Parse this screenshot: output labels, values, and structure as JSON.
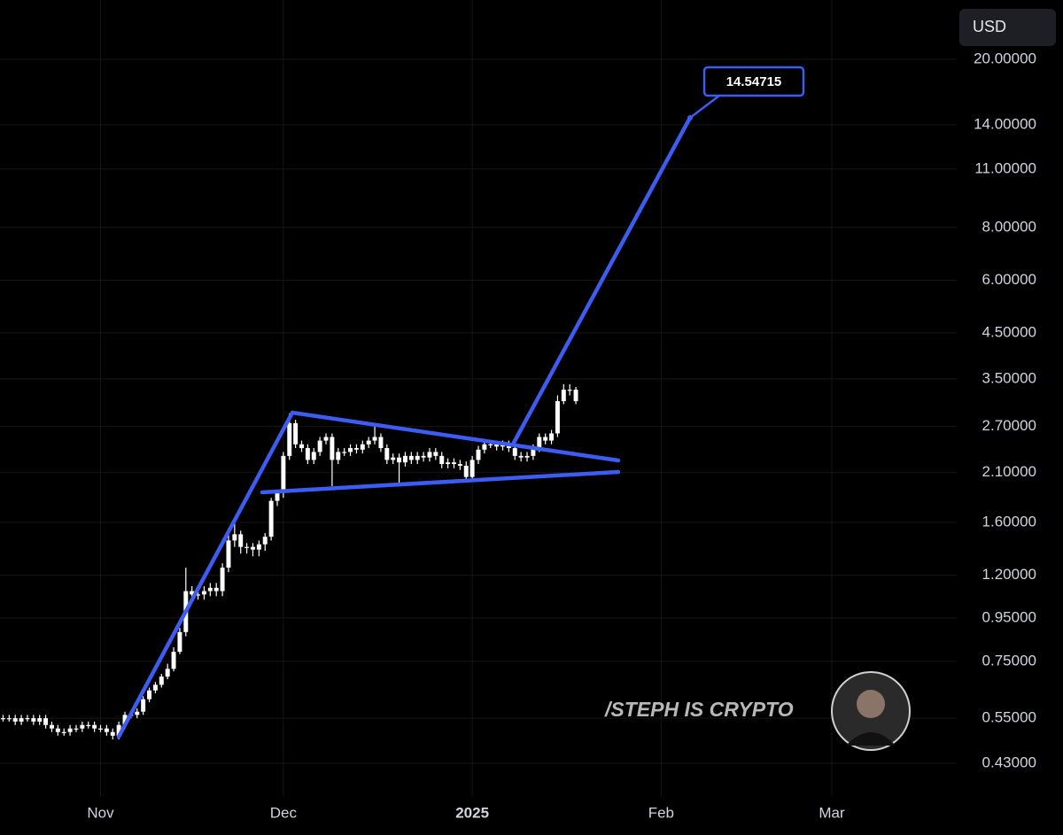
{
  "chart_data": {
    "type": "candlestick",
    "color": "#ffffff",
    "log_scale": true,
    "grid": true,
    "currency": "USD",
    "watermark": "/STEPH IS CRYPTO",
    "target": 14.54715,
    "annotation_color": "#3d5cf2",
    "ylim": [
      0.358,
      27.65
    ],
    "yticks": [
      {
        "value": 0.43,
        "label": "0.43000"
      },
      {
        "value": 0.55,
        "label": "0.55000"
      },
      {
        "value": 0.75,
        "label": "0.75000"
      },
      {
        "value": 0.95,
        "label": "0.95000"
      },
      {
        "value": 1.2,
        "label": "1.20000"
      },
      {
        "value": 1.6,
        "label": "1.60000"
      },
      {
        "value": 2.1,
        "label": "2.10000"
      },
      {
        "value": 2.7,
        "label": "2.70000"
      },
      {
        "value": 3.5,
        "label": "3.50000"
      },
      {
        "value": 4.5,
        "label": "4.50000"
      },
      {
        "value": 6,
        "label": "6.00000"
      },
      {
        "value": 8,
        "label": "8.00000"
      },
      {
        "value": 11,
        "label": "11.00000"
      },
      {
        "value": 14,
        "label": "14.00000"
      },
      {
        "value": 20,
        "label": "20.00000"
      }
    ],
    "categories": [
      null,
      null,
      null,
      null,
      null,
      null,
      null,
      null,
      null,
      null,
      null,
      null,
      null,
      null,
      null,
      null,
      "Nov",
      null,
      null,
      null,
      null,
      null,
      null,
      null,
      null,
      null,
      null,
      null,
      null,
      null,
      null,
      null,
      null,
      null,
      null,
      null,
      null,
      null,
      null,
      null,
      null,
      null,
      null,
      null,
      null,
      null,
      "Dec",
      null,
      null,
      null,
      null,
      null,
      null,
      null,
      null,
      null,
      null,
      null,
      null,
      null,
      null,
      null,
      null,
      null,
      null,
      null,
      null,
      null,
      null,
      null,
      null,
      null,
      null,
      null,
      null,
      null,
      null,
      "2025",
      null,
      null,
      null,
      null,
      null,
      null,
      null,
      null,
      null,
      null,
      null,
      null,
      null,
      null,
      null,
      null,
      null,
      null,
      null,
      null,
      null,
      null,
      null,
      null,
      null,
      null,
      null,
      null,
      null,
      null,
      "Feb",
      null,
      null,
      null,
      null,
      null,
      null,
      null,
      null,
      null,
      null,
      null,
      null,
      null,
      null,
      null,
      null,
      null,
      null,
      null,
      null,
      null,
      null,
      null,
      null,
      null,
      null,
      null,
      "Mar",
      null,
      null,
      null,
      null,
      null,
      null,
      null,
      null,
      null,
      null,
      null,
      null,
      null,
      null,
      null,
      null,
      null,
      null,
      null,
      null
    ],
    "open": [
      0.55,
      0.55,
      0.55,
      0.54,
      0.55,
      0.55,
      0.54,
      0.55,
      0.53,
      0.52,
      0.51,
      0.51,
      0.52,
      0.52,
      0.53,
      0.53,
      0.52,
      0.52,
      0.51,
      0.5,
      0.53,
      0.56,
      0.56,
      0.57,
      0.61,
      0.64,
      0.66,
      0.69,
      0.72,
      0.79,
      0.88,
      1.1,
      1.08,
      1.08,
      1.1,
      1.12,
      1.1,
      1.25,
      1.45,
      1.5,
      1.4,
      1.4,
      1.38,
      1.42,
      1.48,
      1.8,
      1.88,
      2.3,
      2.75,
      2.45,
      2.4,
      2.25,
      2.35,
      2.5,
      2.55,
      2.25,
      2.35,
      2.35,
      2.4,
      2.38,
      2.45,
      2.5,
      2.55,
      2.4,
      2.25,
      2.28,
      2.22,
      2.3,
      2.25,
      2.3,
      2.28,
      2.35,
      2.3,
      2.2,
      2.22,
      2.2,
      2.18,
      2.05,
      2.25,
      2.38,
      2.45,
      2.45,
      2.42,
      2.45,
      2.4,
      2.3,
      2.28,
      2.3,
      2.4,
      2.55,
      2.5,
      2.6,
      3.1,
      3.3,
      3.3,
      null,
      null,
      null,
      null,
      null,
      null,
      null,
      null,
      null,
      null,
      null,
      null,
      null,
      null,
      null,
      null,
      null,
      null,
      null,
      null,
      null,
      null,
      null,
      null,
      null,
      null,
      null,
      null,
      null,
      null,
      null,
      null,
      null,
      null,
      null,
      null,
      null,
      null,
      null,
      null,
      null,
      null,
      null,
      null,
      null,
      null,
      null,
      null,
      null,
      null,
      null,
      null,
      null,
      null,
      null,
      null,
      null,
      null,
      null,
      null,
      null,
      null
    ],
    "high": [
      0.56,
      0.56,
      0.56,
      0.56,
      0.56,
      0.56,
      0.56,
      0.56,
      0.54,
      0.53,
      0.52,
      0.53,
      0.53,
      0.54,
      0.54,
      0.54,
      0.53,
      0.53,
      0.52,
      0.54,
      0.57,
      0.57,
      0.58,
      0.62,
      0.65,
      0.67,
      0.7,
      0.74,
      0.81,
      0.9,
      1.25,
      1.13,
      1.11,
      1.13,
      1.15,
      1.15,
      1.28,
      1.55,
      1.6,
      1.53,
      1.43,
      1.43,
      1.45,
      1.51,
      1.83,
      1.91,
      2.35,
      2.9,
      2.8,
      2.5,
      2.45,
      2.4,
      2.55,
      2.6,
      2.6,
      2.4,
      2.4,
      2.45,
      2.45,
      2.5,
      2.55,
      2.7,
      2.6,
      2.45,
      2.33,
      2.33,
      2.35,
      2.35,
      2.35,
      2.35,
      2.4,
      2.4,
      2.35,
      2.27,
      2.27,
      2.25,
      2.23,
      2.3,
      2.43,
      2.5,
      2.5,
      2.5,
      2.5,
      2.5,
      2.45,
      2.35,
      2.35,
      2.45,
      2.6,
      2.6,
      2.65,
      3.2,
      3.4,
      3.4,
      3.35,
      null,
      null,
      null,
      null,
      null,
      null,
      null,
      null,
      null,
      null,
      null,
      null,
      null,
      null,
      null,
      null,
      null,
      null,
      null,
      null,
      null,
      null,
      null,
      null,
      null,
      null,
      null,
      null,
      null,
      null,
      null,
      null,
      null,
      null,
      null,
      null,
      null,
      null,
      null,
      null,
      null,
      null,
      null,
      null,
      null,
      null,
      null,
      null,
      null,
      null,
      null,
      null,
      null,
      null,
      null,
      null,
      null,
      null,
      null,
      null,
      null,
      null
    ],
    "low": [
      0.54,
      0.54,
      0.53,
      0.53,
      0.54,
      0.53,
      0.53,
      0.52,
      0.51,
      0.5,
      0.5,
      0.5,
      0.51,
      0.51,
      0.52,
      0.51,
      0.51,
      0.5,
      0.49,
      0.49,
      0.52,
      0.55,
      0.55,
      0.56,
      0.6,
      0.63,
      0.65,
      0.68,
      0.71,
      0.78,
      0.86,
      1.05,
      1.05,
      1.05,
      1.07,
      1.07,
      1.07,
      1.22,
      1.4,
      1.35,
      1.35,
      1.33,
      1.33,
      1.37,
      1.45,
      1.75,
      1.83,
      2.25,
      2.4,
      2.35,
      2.2,
      2.2,
      2.3,
      2.45,
      1.95,
      2.2,
      2.3,
      2.3,
      2.33,
      2.33,
      2.4,
      2.45,
      2.35,
      2.2,
      2.2,
      1.97,
      2.17,
      2.2,
      2.2,
      2.23,
      2.23,
      2.25,
      2.15,
      2.15,
      2.15,
      2.13,
      2.0,
      2.0,
      2.2,
      2.33,
      2.4,
      2.37,
      2.37,
      2.35,
      2.25,
      2.23,
      2.23,
      2.25,
      2.35,
      2.45,
      2.45,
      2.55,
      3.05,
      3.2,
      3.05,
      null,
      null,
      null,
      null,
      null,
      null,
      null,
      null,
      null,
      null,
      null,
      null,
      null,
      null,
      null,
      null,
      null,
      null,
      null,
      null,
      null,
      null,
      null,
      null,
      null,
      null,
      null,
      null,
      null,
      null,
      null,
      null,
      null,
      null,
      null,
      null,
      null,
      null,
      null,
      null,
      null,
      null,
      null,
      null,
      null,
      null,
      null,
      null,
      null,
      null,
      null,
      null,
      null,
      null,
      null,
      null,
      null,
      null,
      null,
      null,
      null,
      null
    ],
    "close": [
      0.55,
      0.55,
      0.54,
      0.55,
      0.55,
      0.54,
      0.55,
      0.53,
      0.52,
      0.51,
      0.51,
      0.52,
      0.52,
      0.53,
      0.53,
      0.52,
      0.52,
      0.51,
      0.5,
      0.53,
      0.56,
      0.56,
      0.57,
      0.61,
      0.64,
      0.66,
      0.69,
      0.72,
      0.79,
      0.88,
      1.1,
      1.08,
      1.08,
      1.1,
      1.12,
      1.1,
      1.25,
      1.45,
      1.5,
      1.4,
      1.4,
      1.38,
      1.42,
      1.48,
      1.8,
      1.88,
      2.3,
      2.75,
      2.45,
      2.4,
      2.25,
      2.35,
      2.5,
      2.55,
      2.25,
      2.35,
      2.35,
      2.4,
      2.38,
      2.45,
      2.5,
      2.55,
      2.4,
      2.25,
      2.28,
      2.22,
      2.3,
      2.25,
      2.3,
      2.28,
      2.35,
      2.3,
      2.2,
      2.22,
      2.2,
      2.18,
      2.05,
      2.25,
      2.38,
      2.45,
      2.45,
      2.42,
      2.45,
      2.4,
      2.3,
      2.28,
      2.3,
      2.4,
      2.55,
      2.5,
      2.6,
      3.1,
      3.3,
      3.3,
      3.1,
      null,
      null,
      null,
      null,
      null,
      null,
      null,
      null,
      null,
      null,
      null,
      null,
      null,
      null,
      null,
      null,
      null,
      null,
      null,
      null,
      null,
      null,
      null,
      null,
      null,
      null,
      null,
      null,
      null,
      null,
      null,
      null,
      null,
      null,
      null,
      null,
      null,
      null,
      null,
      null,
      null,
      null,
      null,
      null,
      null,
      null,
      null,
      null,
      null,
      null,
      null,
      null,
      null,
      null,
      null,
      null,
      null,
      null,
      null,
      null,
      null,
      null
    ]
  }
}
